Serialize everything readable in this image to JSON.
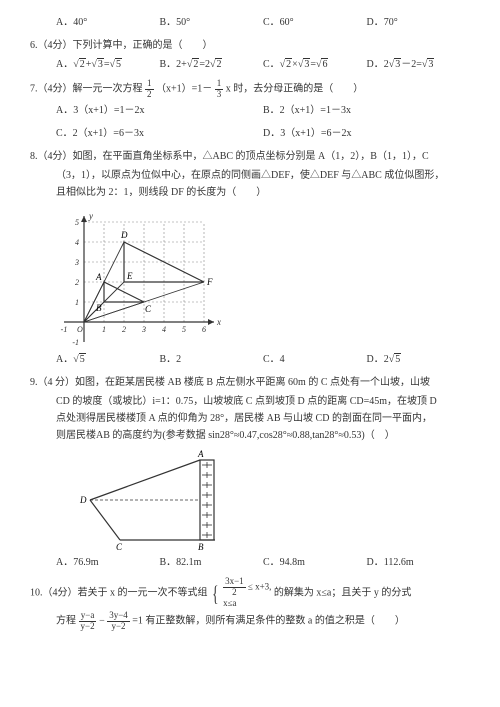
{
  "q5_options": {
    "a": "A．40°",
    "b": "B．50°",
    "c": "C．60°",
    "d": "D．70°"
  },
  "q6": {
    "stem": "6.（4分）下列计算中，正确的是（　　）",
    "a_pre": "A．",
    "a_r1": "2",
    "a_plus": "+",
    "a_r2": "3",
    "a_eq": "=",
    "a_r3": "5",
    "b_pre": "B．2+",
    "b_r1": "2",
    "b_eq": "=2",
    "b_r2": "2",
    "c_pre": "C．",
    "c_r1": "2",
    "c_x": "×",
    "c_r2": "3",
    "c_eq": "=",
    "c_r3": "6",
    "d_pre": "D．2",
    "d_r1": "3",
    "d_m": "－2=",
    "d_r2": "3"
  },
  "q7": {
    "stem_pre": "7.（4分）解一元一次方程",
    "frac1_n": "1",
    "frac1_d": "2",
    "stem_mid": "（x+1）=1－",
    "frac2_n": "1",
    "frac2_d": "3",
    "stem_post": "x 时，去分母正确的是（　　）",
    "a": "A．3（x+1）=1－2x",
    "b": "B．2（x+1）=1－3x",
    "c": "C．2（x+1）=6－3x",
    "d": "D．3（x+1）=6－2x"
  },
  "q8": {
    "line1": "8.（4分）如图，在平面直角坐标系中，△ABC 的顶点坐标分别是 A（1，2），B（1，1），C",
    "line2": "（3，1），以原点为位似中心，在原点的同侧画△DEF，使△DEF 与△ABC 成位似图形，",
    "line3": "且相似比为 2：1，则线段 DF 的长度为（　　）",
    "a_pre": "A．",
    "a_r": "5",
    "b": "B．2",
    "c": "C．4",
    "d_pre": "D．2",
    "d_r": "5",
    "chart": {
      "bg": "#ffffff",
      "axis_color": "#333333",
      "dash_color": "#888888",
      "line_color": "#333333",
      "x_range": [
        -1,
        6
      ],
      "y_range": [
        -1,
        5
      ],
      "x_ticks": [
        "-1",
        "1",
        "2",
        "3",
        "4",
        "5",
        "6"
      ],
      "y_ticks": [
        "-1",
        "1",
        "2",
        "3",
        "4",
        "5"
      ],
      "origin": "O",
      "xlabel": "x",
      "ylabel": "y",
      "labels": {
        "A": "A",
        "B": "B",
        "C": "C",
        "D": "D",
        "E": "E",
        "F": "F"
      },
      "A": [
        1,
        2
      ],
      "B": [
        1,
        1
      ],
      "C": [
        3,
        1
      ],
      "D": [
        2,
        4
      ],
      "E": [
        2,
        2
      ],
      "F": [
        6,
        2
      ]
    }
  },
  "q9": {
    "line1": "9.（4 分）如图，在距某居民楼 AB 楼底 B 点左侧水平距离 60m 的 C 点处有一个山坡，山坡",
    "line2": "CD 的坡度（或坡比）i=1：0.75，山坡坡底 C 点到坡顶 D 点的距离 CD=45m，在坡顶 D",
    "line3": "点处测得居民楼楼顶 A 点的仰角为 28°，居民楼 AB 与山坡 CD 的剖面在同一平面内，",
    "line4": "则居民楼AB 的高度约为(参考数据 sin28°≈0.47,cos28°≈0.88,tan28°≈0.53)（　）",
    "a": "A．76.9m",
    "b": "B．82.1m",
    "c": "C．94.8m",
    "d": "D．112.6m",
    "diagram": {
      "line_color": "#333333",
      "building_hatch": 8,
      "labels": {
        "A": "A",
        "B": "B",
        "C": "C",
        "D": "D"
      }
    }
  },
  "q10": {
    "pre": "10.（4分）若关于 x 的一元一次不等式组",
    "ineq1_lhs_n": "3x−1",
    "ineq1_lhs_d": "2",
    "ineq1_rhs": "≤ x+3,",
    "ineq2": "x≤a",
    "mid": "的解集为 x≤a；且关于 y 的分式",
    "line2_pre": "方程",
    "f1_n": "y−a",
    "f1_d": "y−2",
    "minus": " − ",
    "f2_n": "3y−4",
    "f2_d": "y−2",
    "line2_post": "=1 有正整数解，则所有满足条件的整数 a 的值之积是（　　）"
  }
}
